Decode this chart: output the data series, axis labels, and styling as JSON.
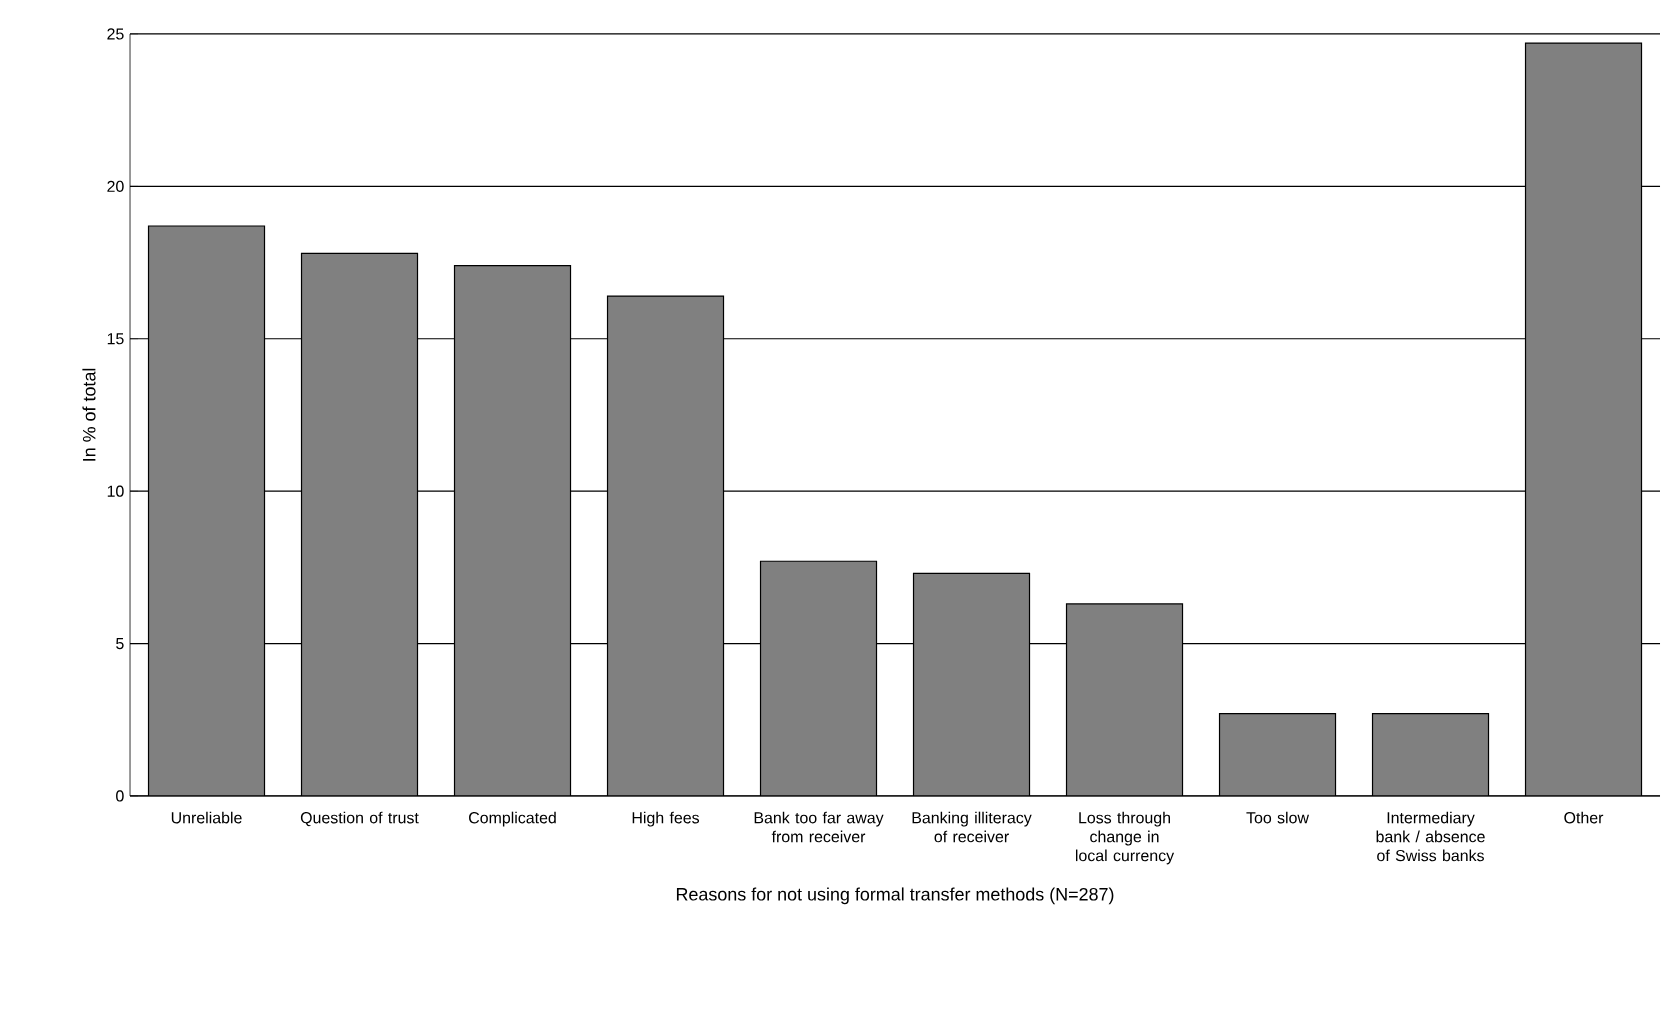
{
  "chart_data": {
    "type": "bar",
    "xlabel": "Reasons for not using formal transfer methods (N=287)",
    "ylabel": "In % of total",
    "categories": [
      "Unreliable",
      "Question of trust",
      "Complicated",
      "High fees",
      "Bank too far away from receiver",
      "Banking illiteracy of receiver",
      "Loss through change in local currency",
      "Too slow",
      "Intermediary bank / absence of Swiss banks",
      "Other"
    ],
    "values": [
      18.7,
      17.8,
      17.4,
      16.4,
      7.7,
      7.3,
      6.3,
      2.7,
      2.7,
      24.7
    ],
    "color": "#808080",
    "ylim": [
      0,
      25
    ],
    "yticks": [
      0,
      5,
      10,
      15,
      20,
      25
    ],
    "grid": "y"
  }
}
